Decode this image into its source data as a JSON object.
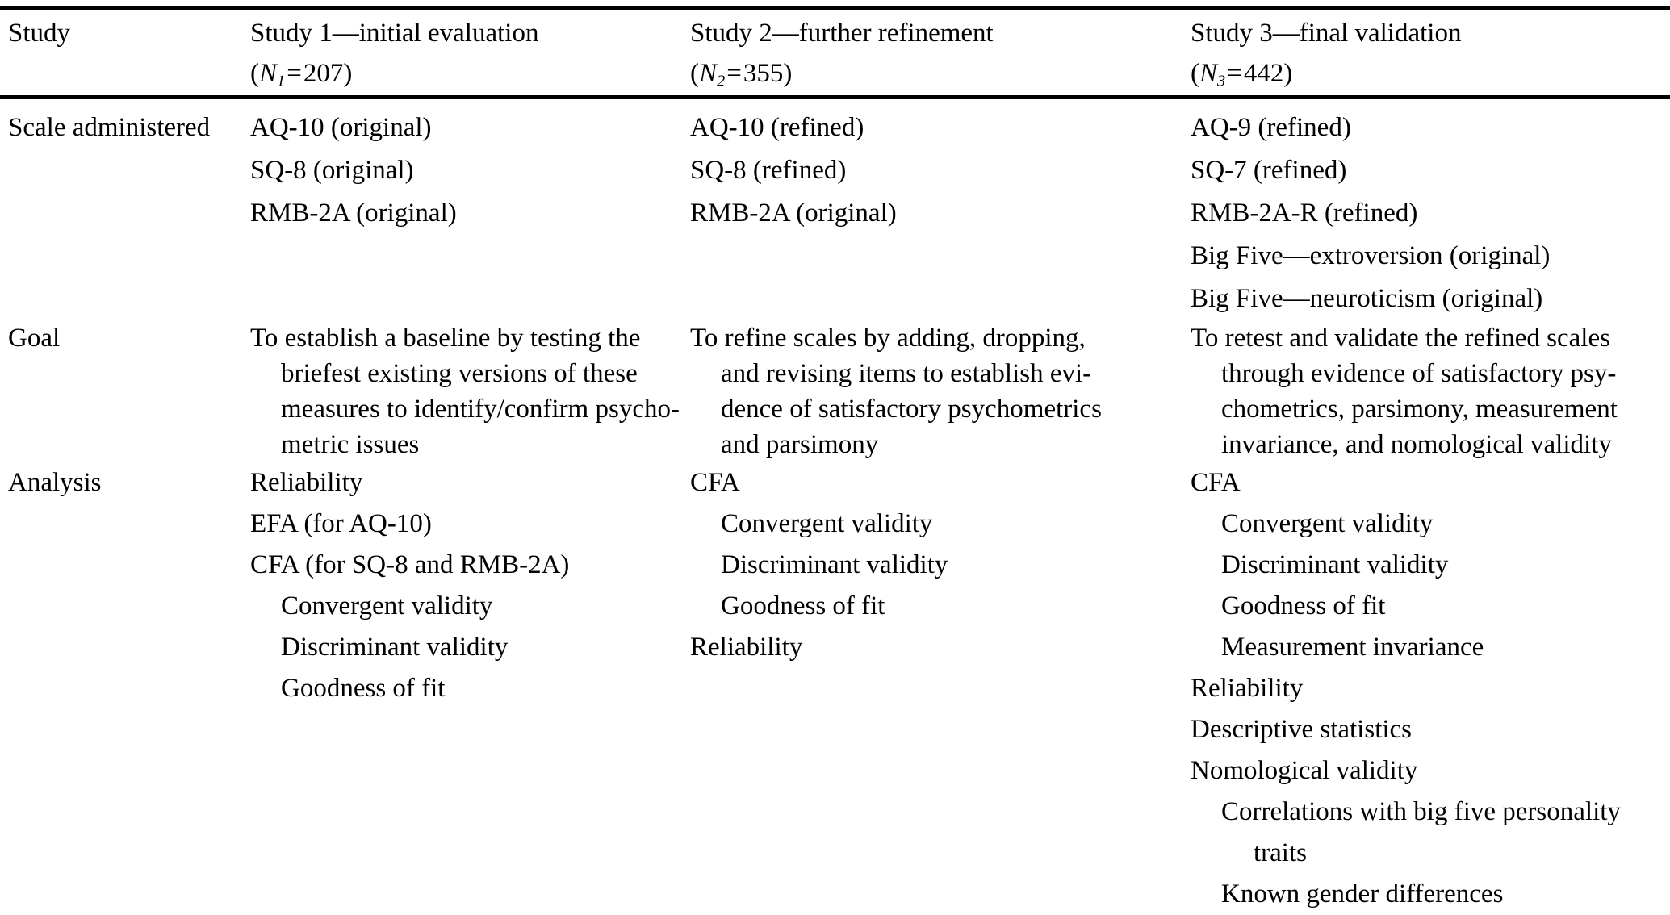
{
  "colors": {
    "background": "#ffffff",
    "text": "#000000",
    "rule": "#000000"
  },
  "table": {
    "header": {
      "label": "Study",
      "columns": [
        {
          "title": "Study 1—initial evaluation",
          "n_open": "(",
          "n_letter": "N",
          "n_sub": "1",
          "n_eq": "=",
          "n_value": "207",
          "n_close": ")"
        },
        {
          "title": "Study 2—further refinement",
          "n_open": "(",
          "n_letter": "N",
          "n_sub": "2",
          "n_eq": "=",
          "n_value": "355",
          "n_close": ")"
        },
        {
          "title": "Study 3—final validation",
          "n_open": "(",
          "n_letter": "N",
          "n_sub": "3",
          "n_eq": "=",
          "n_value": "442",
          "n_close": ")"
        }
      ]
    },
    "rows": [
      {
        "label": "Scale administered",
        "type": "list",
        "cells": [
          [
            {
              "text": "AQ-10 (original)",
              "indent": 0
            },
            {
              "text": "SQ-8 (original)",
              "indent": 0
            },
            {
              "text": "RMB-2A (original)",
              "indent": 0
            }
          ],
          [
            {
              "text": "AQ-10 (refined)",
              "indent": 0
            },
            {
              "text": "SQ-8 (refined)",
              "indent": 0
            },
            {
              "text": "RMB-2A (original)",
              "indent": 0
            }
          ],
          [
            {
              "text": "AQ-9 (refined)",
              "indent": 0
            },
            {
              "text": "SQ-7 (refined)",
              "indent": 0
            },
            {
              "text": "RMB-2A-R (refined)",
              "indent": 0
            },
            {
              "text": "Big Five—extroversion (original)",
              "indent": 0
            },
            {
              "text": "Big Five—neuroticism (original)",
              "indent": 0
            }
          ]
        ]
      },
      {
        "label": "Goal",
        "type": "paragraph",
        "cells": [
          [
            {
              "text": "To establish a baseline by testing the",
              "indent": 0
            },
            {
              "text": "briefest existing versions of these",
              "indent": 1
            },
            {
              "text": "measures to identify/confirm psycho-",
              "indent": 1
            },
            {
              "text": "metric issues",
              "indent": 1
            }
          ],
          [
            {
              "text": "To refine scales by adding, dropping,",
              "indent": 0
            },
            {
              "text": "and revising items to establish evi-",
              "indent": 1
            },
            {
              "text": "dence of satisfactory psychometrics",
              "indent": 1
            },
            {
              "text": "and parsimony",
              "indent": 1
            }
          ],
          [
            {
              "text": "To retest and validate the refined scales",
              "indent": 0
            },
            {
              "text": "through evidence of satisfactory psy-",
              "indent": 1
            },
            {
              "text": "chometrics, parsimony, measurement",
              "indent": 1
            },
            {
              "text": "invariance, and nomological validity",
              "indent": 1
            }
          ]
        ]
      },
      {
        "label": "Analysis",
        "type": "list",
        "cells": [
          [
            {
              "text": "Reliability",
              "indent": 0
            },
            {
              "text": "EFA (for AQ-10)",
              "indent": 0
            },
            {
              "text": "CFA (for SQ-8 and RMB-2A)",
              "indent": 0
            },
            {
              "text": "Convergent validity",
              "indent": 1
            },
            {
              "text": "Discriminant validity",
              "indent": 1
            },
            {
              "text": "Goodness of fit",
              "indent": 1
            }
          ],
          [
            {
              "text": "CFA",
              "indent": 0
            },
            {
              "text": "Convergent validity",
              "indent": 1
            },
            {
              "text": "Discriminant validity",
              "indent": 1
            },
            {
              "text": "Goodness of fit",
              "indent": 1
            },
            {
              "text": "Reliability",
              "indent": 0
            }
          ],
          [
            {
              "text": "CFA",
              "indent": 0
            },
            {
              "text": "Convergent validity",
              "indent": 1
            },
            {
              "text": "Discriminant validity",
              "indent": 1
            },
            {
              "text": "Goodness of fit",
              "indent": 1
            },
            {
              "text": "Measurement invariance",
              "indent": 1
            },
            {
              "text": "Reliability",
              "indent": 0
            },
            {
              "text": "Descriptive statistics",
              "indent": 0
            },
            {
              "text": "Nomological validity",
              "indent": 0
            },
            {
              "text": "Correlations with big five personality",
              "indent": 1
            },
            {
              "text": "traits",
              "indent": 2
            },
            {
              "text": "Known gender differences",
              "indent": 1
            }
          ]
        ]
      }
    ]
  }
}
